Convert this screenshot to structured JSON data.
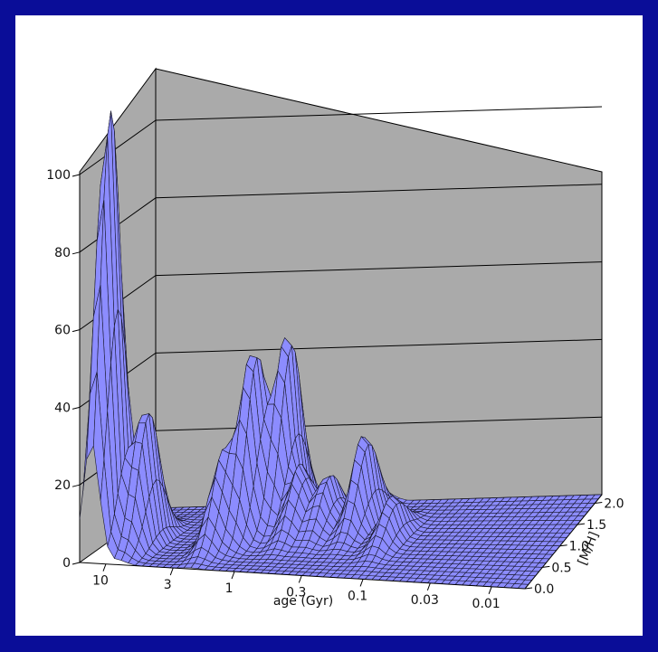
{
  "chart_data": {
    "type": "surface",
    "title": "",
    "xlabel": "age (Gyr)",
    "ylabel": "[M/H]",
    "zlabel": "",
    "x_ticks": [
      "10",
      "3",
      "1",
      "0.3",
      "0.1",
      "0.03",
      "0.01"
    ],
    "y_ticks": [
      "0.0",
      "0.5",
      "1.0",
      "1.5",
      "2.0"
    ],
    "z_ticks": [
      "0",
      "20",
      "40",
      "60",
      "80",
      "100"
    ],
    "zlim": [
      0,
      115
    ],
    "grid": true,
    "colors": {
      "surface": "#8c8cff",
      "wall": "#aaaaaa",
      "frame": "#0a0d98"
    },
    "features": [
      {
        "age_gyr": 13,
        "mh": 0.5,
        "height": 118
      },
      {
        "age_gyr": 8,
        "mh": 0.8,
        "height": 36
      },
      {
        "age_gyr": 2.2,
        "mh": 0.9,
        "height": 22
      },
      {
        "age_gyr": 1.6,
        "mh": 1.3,
        "height": 47
      },
      {
        "age_gyr": 1.1,
        "mh": 1.7,
        "height": 49
      },
      {
        "age_gyr": 0.7,
        "mh": 1.3,
        "height": 17
      },
      {
        "age_gyr": 0.45,
        "mh": 1.4,
        "height": 14
      },
      {
        "age_gyr": 0.25,
        "mh": 1.5,
        "height": 24
      },
      {
        "age_gyr": 0.12,
        "mh": 1.1,
        "height": 11
      }
    ]
  }
}
